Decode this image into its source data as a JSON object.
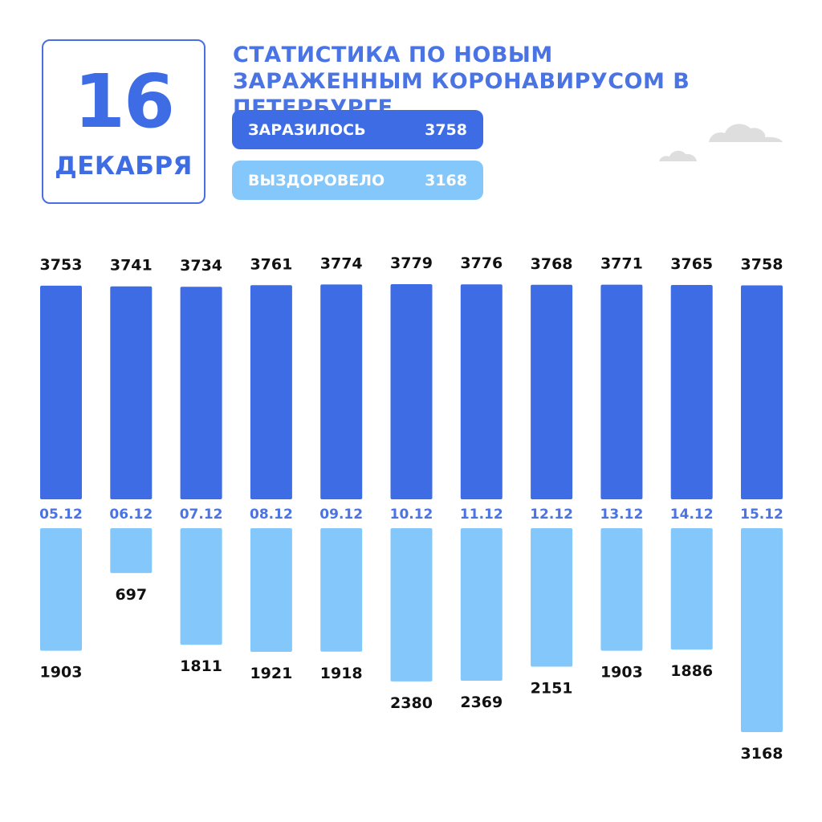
{
  "date": {
    "day": "16",
    "month": "ДЕКАБРЯ"
  },
  "title": "СТАТИСТИКА ПО НОВЫМ ЗАРАЖЕННЫМ КОРОНАВИРУСОМ В ПЕТЕРБУРГЕ",
  "summary": {
    "infected_label": "ЗАРАЗИЛОСЬ",
    "infected_value": "3758",
    "recovered_label": "ВЫЗДОРОВЕЛО",
    "recovered_value": "3168"
  },
  "colors": {
    "infected": "#3e6ce5",
    "recovered": "#84c7fb",
    "cloud": "#dedede"
  },
  "chart_data": {
    "type": "bar",
    "categories": [
      "05.12",
      "06.12",
      "07.12",
      "08.12",
      "09.12",
      "10.12",
      "11.12",
      "12.12",
      "13.12",
      "14.12",
      "15.12"
    ],
    "series": [
      {
        "name": "ЗАРАЗИЛОСЬ",
        "values": [
          3753,
          3741,
          3734,
          3761,
          3774,
          3779,
          3776,
          3768,
          3771,
          3765,
          3758
        ]
      },
      {
        "name": "ВЫЗДОРОВЕЛО",
        "values": [
          1903,
          697,
          1811,
          1921,
          1918,
          2380,
          2369,
          2151,
          1903,
          1886,
          3168
        ]
      }
    ]
  }
}
